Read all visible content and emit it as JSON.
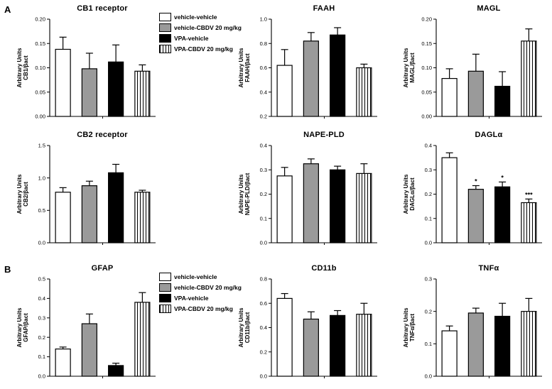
{
  "panels": [
    {
      "label": "A"
    },
    {
      "label": "B"
    }
  ],
  "legend": {
    "items": [
      {
        "label": "vehicle-vehicle",
        "fill": "white"
      },
      {
        "label": "vehicle-CBDV 20 mg/kg",
        "fill": "gray"
      },
      {
        "label": "VPA-vehicle",
        "fill": "black"
      },
      {
        "label": "VPA-CBDV 20 mg/kg",
        "fill": "hatch"
      }
    ]
  },
  "colors": {
    "bar_white": "#ffffff",
    "bar_gray": "#9a9a9a",
    "bar_black": "#000000",
    "axis": "#000000"
  },
  "chart_data": [
    {
      "type": "bar",
      "panel": "A",
      "title": "CB1 receptor",
      "ylabel_lines": [
        "Arbitrary Units",
        "CB1/βact"
      ],
      "ylim": [
        0,
        0.2
      ],
      "yticks": [
        0.0,
        0.05,
        0.1,
        0.15,
        0.2
      ],
      "tick_decimals": 2,
      "categories": [
        "vehicle-vehicle",
        "vehicle-CBDV 20 mg/kg",
        "VPA-vehicle",
        "VPA-CBDV 20 mg/kg"
      ],
      "values": [
        0.138,
        0.098,
        0.112,
        0.093
      ],
      "errors": [
        0.025,
        0.032,
        0.035,
        0.013
      ],
      "annotations": [
        "",
        "",
        "",
        ""
      ]
    },
    {
      "type": "bar",
      "panel": "A",
      "title": "FAAH",
      "ylabel_lines": [
        "Arbitrary Units",
        "FAAH/βact"
      ],
      "ylim": [
        0.2,
        1.0
      ],
      "yticks": [
        0.2,
        0.4,
        0.6,
        0.8,
        1.0
      ],
      "tick_decimals": 1,
      "categories": [
        "vehicle-vehicle",
        "vehicle-CBDV 20 mg/kg",
        "VPA-vehicle",
        "VPA-CBDV 20 mg/kg"
      ],
      "values": [
        0.62,
        0.82,
        0.87,
        0.6
      ],
      "errors": [
        0.13,
        0.07,
        0.06,
        0.03
      ],
      "annotations": [
        "",
        "",
        "",
        ""
      ]
    },
    {
      "type": "bar",
      "panel": "A",
      "title": "MAGL",
      "ylabel_lines": [
        "Arbitrary Units",
        "MAGL/βact"
      ],
      "ylim": [
        0,
        0.2
      ],
      "yticks": [
        0.0,
        0.05,
        0.1,
        0.15,
        0.2
      ],
      "tick_decimals": 2,
      "categories": [
        "vehicle-vehicle",
        "vehicle-CBDV 20 mg/kg",
        "VPA-vehicle",
        "VPA-CBDV 20 mg/kg"
      ],
      "values": [
        0.078,
        0.093,
        0.062,
        0.155
      ],
      "errors": [
        0.02,
        0.035,
        0.03,
        0.025
      ],
      "annotations": [
        "",
        "",
        "",
        ""
      ]
    },
    {
      "type": "bar",
      "panel": "A",
      "title": "CB2 receptor",
      "ylabel_lines": [
        "Arbitrary Units",
        "CB2/βact"
      ],
      "ylim": [
        0,
        1.5
      ],
      "yticks": [
        0.0,
        0.5,
        1.0,
        1.5
      ],
      "tick_decimals": 1,
      "categories": [
        "vehicle-vehicle",
        "vehicle-CBDV 20 mg/kg",
        "VPA-vehicle",
        "VPA-CBDV 20 mg/kg"
      ],
      "values": [
        0.78,
        0.88,
        1.08,
        0.78
      ],
      "errors": [
        0.07,
        0.07,
        0.13,
        0.03
      ],
      "annotations": [
        "",
        "",
        "",
        ""
      ]
    },
    {
      "type": "bar",
      "panel": "A",
      "title": "NAPE-PLD",
      "ylabel_lines": [
        "Arbitrary Units",
        "NAPE-PLD/βact"
      ],
      "ylim": [
        0,
        0.4
      ],
      "yticks": [
        0.0,
        0.1,
        0.2,
        0.3,
        0.4
      ],
      "tick_decimals": 1,
      "categories": [
        "vehicle-vehicle",
        "vehicle-CBDV 20 mg/kg",
        "VPA-vehicle",
        "VPA-CBDV 20 mg/kg"
      ],
      "values": [
        0.275,
        0.325,
        0.3,
        0.285
      ],
      "errors": [
        0.035,
        0.02,
        0.015,
        0.04
      ],
      "annotations": [
        "",
        "",
        "",
        ""
      ]
    },
    {
      "type": "bar",
      "panel": "A",
      "title": "DAGLα",
      "ylabel_lines": [
        "Arbitrary Units",
        "DAGLα/βact"
      ],
      "ylim": [
        0,
        0.4
      ],
      "yticks": [
        0.0,
        0.1,
        0.2,
        0.3,
        0.4
      ],
      "tick_decimals": 1,
      "categories": [
        "vehicle-vehicle",
        "vehicle-CBDV 20 mg/kg",
        "VPA-vehicle",
        "VPA-CBDV 20 mg/kg"
      ],
      "values": [
        0.35,
        0.22,
        0.23,
        0.165
      ],
      "errors": [
        0.02,
        0.015,
        0.02,
        0.015
      ],
      "annotations": [
        "",
        "*",
        "*",
        "***"
      ]
    },
    {
      "type": "bar",
      "panel": "B",
      "title": "GFAP",
      "ylabel_lines": [
        "Arbitrary Units",
        "GFAP/βact"
      ],
      "ylim": [
        0,
        0.5
      ],
      "yticks": [
        0.0,
        0.1,
        0.2,
        0.3,
        0.4,
        0.5
      ],
      "tick_decimals": 1,
      "categories": [
        "vehicle-vehicle",
        "vehicle-CBDV 20 mg/kg",
        "VPA-vehicle",
        "VPA-CBDV 20 mg/kg"
      ],
      "values": [
        0.14,
        0.27,
        0.055,
        0.38
      ],
      "errors": [
        0.01,
        0.05,
        0.012,
        0.05
      ],
      "annotations": [
        "",
        "",
        "",
        ""
      ]
    },
    {
      "type": "bar",
      "panel": "B",
      "title": "CD11b",
      "ylabel_lines": [
        "Arbitrary Units",
        "CD11b/βact"
      ],
      "ylim": [
        0,
        0.8
      ],
      "yticks": [
        0.0,
        0.2,
        0.4,
        0.6,
        0.8
      ],
      "tick_decimals": 1,
      "categories": [
        "vehicle-vehicle",
        "vehicle-CBDV 20 mg/kg",
        "VPA-vehicle",
        "VPA-CBDV 20 mg/kg"
      ],
      "values": [
        0.64,
        0.47,
        0.5,
        0.51
      ],
      "errors": [
        0.04,
        0.06,
        0.04,
        0.09
      ],
      "annotations": [
        "",
        "",
        "",
        ""
      ]
    },
    {
      "type": "bar",
      "panel": "B",
      "title": "TNFα",
      "ylabel_lines": [
        "Arbitrary Units",
        "TNFα/βact"
      ],
      "ylim": [
        0,
        0.3
      ],
      "yticks": [
        0.0,
        0.1,
        0.2,
        0.3
      ],
      "tick_decimals": 1,
      "categories": [
        "vehicle-vehicle",
        "vehicle-CBDV 20 mg/kg",
        "VPA-vehicle",
        "VPA-CBDV 20 mg/kg"
      ],
      "values": [
        0.14,
        0.195,
        0.185,
        0.2
      ],
      "errors": [
        0.015,
        0.015,
        0.04,
        0.04
      ],
      "annotations": [
        "",
        "",
        "",
        ""
      ]
    }
  ]
}
